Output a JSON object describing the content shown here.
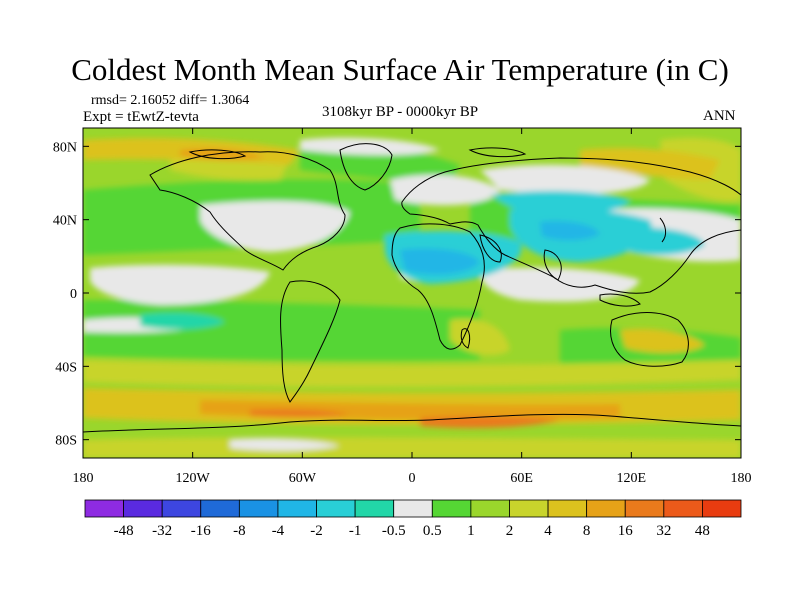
{
  "title": "Coldest Month Mean Surface Air Temperature (in C)",
  "stats": "rmsd= 2.16052 diff= 1.3064",
  "expt": "Expt = tEwtZ-tevta",
  "period": "3108kyr BP - 0000kyr BP",
  "season": "ANN",
  "lon_ticks": [
    "180",
    "120W",
    "60W",
    "0",
    "60E",
    "120E",
    "180"
  ],
  "lat_ticks": [
    "80N",
    "40N",
    "0",
    "40S",
    "80S"
  ],
  "colorbar": {
    "labels": [
      "-48",
      "-32",
      "-16",
      "-8",
      "-4",
      "-2",
      "-1",
      "-0.5",
      "0.5",
      "1",
      "2",
      "4",
      "8",
      "16",
      "32",
      "48"
    ],
    "colors": [
      "#8e2be2",
      "#5a2ae0",
      "#3d46e0",
      "#1f6ad8",
      "#1a92e4",
      "#20b6e6",
      "#29cfd6",
      "#22d6a8",
      "#e8e8e8",
      "#55d634",
      "#9ad62c",
      "#c8d42c",
      "#dcc21e",
      "#e6a218",
      "#ea7a1c",
      "#ec5a1a",
      "#e83c10"
    ]
  }
}
